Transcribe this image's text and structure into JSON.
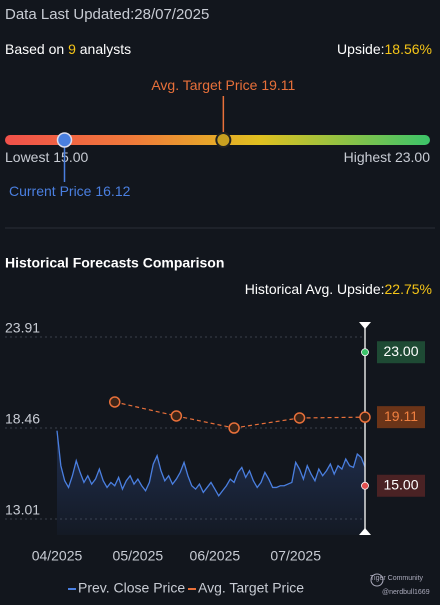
{
  "header": {
    "label": "Data Last Updated:",
    "date": "28/07/2025"
  },
  "summary": {
    "prefix": "Based on",
    "analysts": 9,
    "suffix": "analysts",
    "upside_label": "Upside:",
    "upside": "18.56%"
  },
  "range": {
    "avg_label": "Avg. Target Price",
    "avg": 19.11,
    "lowest_label": "Lowest",
    "lowest": {
      "value": 15,
      "label": "15.00"
    },
    "highest_label": "Highest",
    "highest": {
      "value": 23,
      "label": "23.00"
    },
    "current_label": "Current Price",
    "current": 16.12
  },
  "chart_data": {
    "type": "line",
    "title": "Historical Forecasts Comparison",
    "subtitle_label": "Historical Avg. Upside:",
    "subtitle_value": "22.75%",
    "categories": [
      "04/2025",
      null,
      null,
      null,
      null,
      null,
      null,
      null,
      null,
      null,
      null,
      null,
      null,
      null,
      null,
      null,
      null,
      null,
      null,
      null,
      null,
      "05/2025",
      null,
      null,
      null,
      null,
      null,
      null,
      null,
      null,
      null,
      null,
      null,
      null,
      null,
      null,
      null,
      null,
      null,
      null,
      null,
      "06/2025",
      null,
      null,
      null,
      null,
      null,
      null,
      null,
      null,
      null,
      null,
      null,
      null,
      null,
      null,
      null,
      null,
      null,
      null,
      null,
      null,
      "07/2025",
      null,
      null,
      null,
      null,
      null,
      null,
      null,
      null,
      null,
      null,
      null,
      null,
      null,
      null,
      null,
      null,
      null,
      null
    ],
    "series": [
      {
        "name": "Prev. Close Price",
        "color": "#4a7fe0",
        "values": [
          18.3,
          16.2,
          15.3,
          14.9,
          15.6,
          16.5,
          15.8,
          15.2,
          15.6,
          15.1,
          15.4,
          16.0,
          15.3,
          14.9,
          15.2,
          15.0,
          15.5,
          14.8,
          15.3,
          15.6,
          15.1,
          15.4,
          15.0,
          14.7,
          15.2,
          16.3,
          16.8,
          15.9,
          15.3,
          15.6,
          15.1,
          15.4,
          15.8,
          16.4,
          15.6,
          15.0,
          14.8,
          15.1,
          14.6,
          14.9,
          15.2,
          14.8,
          14.4,
          14.7,
          15.0,
          15.4,
          15.2,
          15.8,
          16.1,
          15.5,
          15.9,
          15.3,
          14.9,
          15.2,
          15.8,
          15.4,
          14.9,
          14.9,
          15.0,
          15.0,
          15.1,
          15.2,
          16.4,
          16.0,
          15.4,
          16.2,
          15.7,
          15.3,
          16.0,
          15.6,
          15.9,
          16.3,
          15.7,
          16.2,
          16.0,
          16.6,
          16.2,
          16.1,
          16.9,
          16.7,
          16.12
        ]
      },
      {
        "name": "Avg. Target Price",
        "color": "#e8703a",
        "values": [
          null,
          null,
          null,
          null,
          null,
          null,
          null,
          null,
          null,
          null,
          null,
          null,
          null,
          null,
          null,
          20.02,
          null,
          null,
          null,
          null,
          null,
          null,
          null,
          null,
          null,
          null,
          null,
          null,
          null,
          null,
          null,
          19.18,
          null,
          null,
          null,
          null,
          null,
          null,
          null,
          null,
          null,
          null,
          null,
          null,
          null,
          null,
          18.46,
          null,
          null,
          null,
          null,
          null,
          null,
          null,
          null,
          null,
          null,
          null,
          null,
          null,
          null,
          null,
          null,
          19.06,
          null,
          null,
          null,
          null,
          null,
          null,
          null,
          null,
          null,
          null,
          null,
          null,
          null,
          null,
          null,
          null,
          19.11
        ]
      }
    ],
    "ylim": [
      12.05,
      24.81
    ],
    "yticks": [
      13.01,
      18.46,
      23.91
    ],
    "grid": true
  },
  "watermark": {
    "brand": "Tiger Community",
    "user": "@nerdbull1669"
  }
}
